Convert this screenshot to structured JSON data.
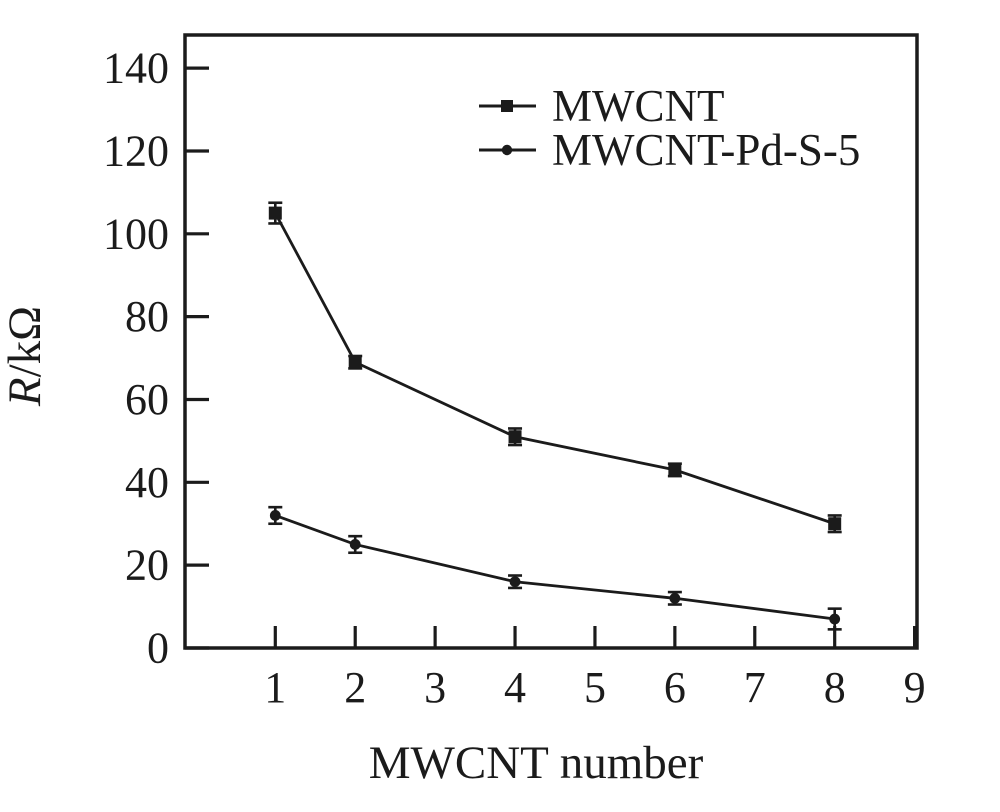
{
  "figure": {
    "background": "#ffffff",
    "ink_color": "#1b1b1b"
  },
  "chart_data": {
    "type": "line",
    "title": "",
    "xlabel": "MWCNT number",
    "ylabel": "R/kΩ",
    "ylabel_italic_part": "R",
    "ylabel_upright_part": "/kΩ",
    "x": [
      1,
      2,
      4,
      6,
      8
    ],
    "series": [
      {
        "name": "MWCNT",
        "marker": "square",
        "color": "#1b1b1b",
        "values": [
          105,
          69,
          51,
          43,
          30
        ],
        "errors": [
          2.5,
          1.5,
          2,
          1.5,
          2
        ]
      },
      {
        "name": "MWCNT-Pd-S-5",
        "marker": "circle",
        "color": "#1b1b1b",
        "values": [
          32,
          25,
          16,
          12,
          7
        ],
        "errors": [
          2,
          2,
          1.5,
          1.5,
          2.5
        ]
      }
    ],
    "xticks": [
      1,
      2,
      3,
      4,
      5,
      6,
      7,
      8,
      9
    ],
    "yticks": [
      0,
      20,
      40,
      60,
      80,
      100,
      120,
      140
    ],
    "xlim": [
      -0.13,
      9.03
    ],
    "ylim": [
      0,
      148
    ],
    "grid": false,
    "error_bars": true,
    "legend_position": "upper-right-inside"
  }
}
